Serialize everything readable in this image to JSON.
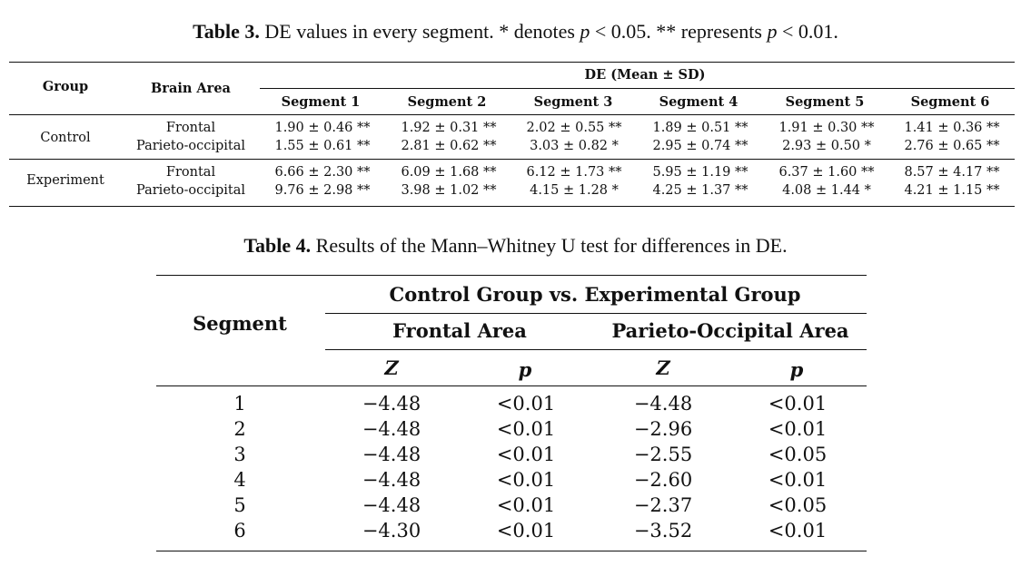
{
  "table3": {
    "caption_label": "Table 3.",
    "caption_text_1": "DE values in every segment. * denotes ",
    "caption_p1": "p",
    "caption_text_2": " < 0.05. ** represents ",
    "caption_p2": "p",
    "caption_text_3": " < 0.01.",
    "col_group": "Group",
    "col_area": "Brain Area",
    "col_de": "DE (Mean ± SD)",
    "segments": [
      "Segment 1",
      "Segment 2",
      "Segment 3",
      "Segment 4",
      "Segment 5",
      "Segment 6"
    ],
    "groups": [
      {
        "name": "Control",
        "rows": [
          {
            "area": "Frontal",
            "values": [
              "1.90 ± 0.46 **",
              "1.92 ± 0.31 **",
              "2.02 ± 0.55 **",
              "1.89 ± 0.51 **",
              "1.91 ± 0.30 **",
              "1.41 ± 0.36 **"
            ]
          },
          {
            "area": "Parieto-occipital",
            "values": [
              "1.55 ± 0.61 **",
              "2.81 ± 0.62 **",
              "3.03 ± 0.82 *",
              "2.95 ± 0.74 **",
              "2.93 ± 0.50 *",
              "2.76 ± 0.65 **"
            ]
          }
        ]
      },
      {
        "name": "Experiment",
        "rows": [
          {
            "area": "Frontal",
            "values": [
              "6.66 ± 2.30 **",
              "6.09 ± 1.68 **",
              "6.12 ± 1.73 **",
              "5.95 ± 1.19 **",
              "6.37 ± 1.60 **",
              "8.57 ± 4.17 **"
            ]
          },
          {
            "area": "Parieto-occipital",
            "values": [
              "9.76 ± 2.98 **",
              "3.98 ± 1.02 **",
              "4.15 ± 1.28 *",
              "4.25 ± 1.37 **",
              "4.08 ± 1.44 *",
              "4.21 ± 1.15 **"
            ]
          }
        ]
      }
    ]
  },
  "table4": {
    "caption_label": "Table 4.",
    "caption_text": "Results of the Mann–Whitney U test for differences in DE.",
    "col_segment": "Segment",
    "col_comparison": "Control Group vs. Experimental Group",
    "col_frontal": "Frontal Area",
    "col_parieto": "Parieto-Occipital Area",
    "col_z": "Z",
    "col_p": "p",
    "rows": [
      {
        "segment": "1",
        "frontal_z": "−4.48",
        "frontal_p": "<0.01",
        "parieto_z": "−4.48",
        "parieto_p": "<0.01"
      },
      {
        "segment": "2",
        "frontal_z": "−4.48",
        "frontal_p": "<0.01",
        "parieto_z": "−2.96",
        "parieto_p": "<0.01"
      },
      {
        "segment": "3",
        "frontal_z": "−4.48",
        "frontal_p": "<0.01",
        "parieto_z": "−2.55",
        "parieto_p": "<0.05"
      },
      {
        "segment": "4",
        "frontal_z": "−4.48",
        "frontal_p": "<0.01",
        "parieto_z": "−2.60",
        "parieto_p": "<0.01"
      },
      {
        "segment": "5",
        "frontal_z": "−4.48",
        "frontal_p": "<0.01",
        "parieto_z": "−2.37",
        "parieto_p": "<0.05"
      },
      {
        "segment": "6",
        "frontal_z": "−4.30",
        "frontal_p": "<0.01",
        "parieto_z": "−3.52",
        "parieto_p": "<0.01"
      }
    ]
  }
}
